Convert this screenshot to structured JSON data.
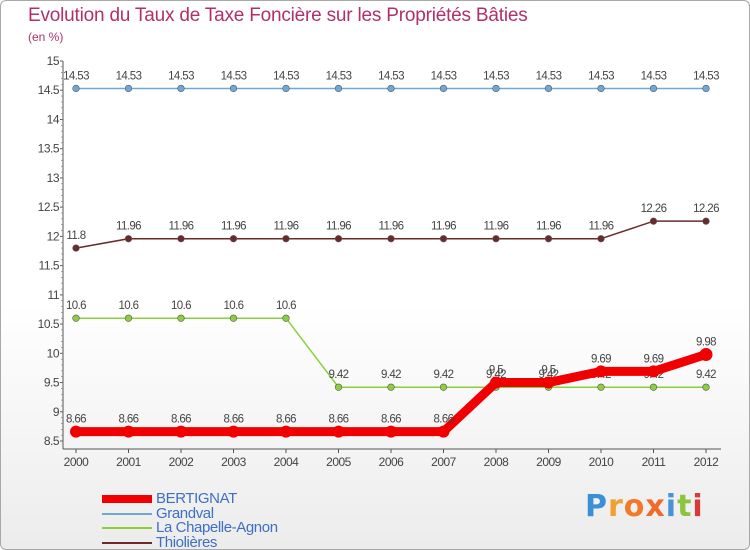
{
  "header": {
    "title": "Evolution du Taux de Taxe Foncière sur les Propriétés Bâties",
    "unit": "(en %)"
  },
  "logo": {
    "letters": [
      "P",
      "r",
      "o",
      "x",
      "i",
      "t",
      "i"
    ],
    "colors": [
      "#3a8fd6",
      "#f0a02c",
      "#f07a2a",
      "#f06a2a",
      "#4a92d8",
      "#8cc43e",
      "#d63a3a"
    ]
  },
  "chart_data": {
    "type": "line",
    "title": "Evolution du Taux de Taxe Foncière sur les Propriétés Bâties",
    "ylabel": "(en %)",
    "xlabel": "",
    "x": [
      "2000",
      "2001",
      "2002",
      "2003",
      "2004",
      "2005",
      "2006",
      "2007",
      "2008",
      "2009",
      "2010",
      "2011",
      "2012"
    ],
    "ylim": [
      8.5,
      15
    ],
    "yticks": [
      "8.5",
      "9",
      "9.5",
      "10",
      "10.5",
      "11",
      "11.5",
      "12",
      "12.5",
      "13",
      "13.5",
      "14",
      "14.5",
      "15"
    ],
    "grid": false,
    "legend_position": "bottom-left",
    "series": [
      {
        "name": "Grandval",
        "color": "#6fa8d6",
        "values": [
          14.53,
          14.53,
          14.53,
          14.53,
          14.53,
          14.53,
          14.53,
          14.53,
          14.53,
          14.53,
          14.53,
          14.53,
          14.53
        ],
        "labels": [
          "14.53",
          "14.53",
          "14.53",
          "14.53",
          "14.53",
          "14.53",
          "14.53",
          "14.53",
          "14.53",
          "14.53",
          "14.53",
          "14.53",
          "14.53"
        ]
      },
      {
        "name": "Thiolières",
        "color": "#6b2a2a",
        "values": [
          11.8,
          11.96,
          11.96,
          11.96,
          11.96,
          11.96,
          11.96,
          11.96,
          11.96,
          11.96,
          11.96,
          12.26,
          12.26
        ],
        "labels": [
          "11.8",
          "11.96",
          "11.96",
          "11.96",
          "11.96",
          "11.96",
          "11.96",
          "11.96",
          "11.96",
          "11.96",
          "11.96",
          "12.26",
          "12.26"
        ]
      },
      {
        "name": "La Chapelle-Agnon",
        "color": "#8ccf3c",
        "values": [
          10.6,
          10.6,
          10.6,
          10.6,
          10.6,
          9.42,
          9.42,
          9.42,
          9.42,
          9.42,
          9.42,
          9.42,
          9.42
        ],
        "labels": [
          "10.6",
          "10.6",
          "10.6",
          "10.6",
          "10.6",
          "9.42",
          "9.42",
          "9.42",
          "9.42",
          "9.42",
          "9.42",
          "9.42",
          "9.42"
        ]
      },
      {
        "name": "BERTIGNAT",
        "color": "#f00000",
        "values": [
          8.66,
          8.66,
          8.66,
          8.66,
          8.66,
          8.66,
          8.66,
          8.66,
          9.5,
          9.5,
          9.69,
          9.69,
          9.98
        ],
        "labels": [
          "8.66",
          "8.66",
          "8.66",
          "8.66",
          "8.66",
          "8.66",
          "8.66",
          "8.66",
          "9.5",
          "9.5",
          "9.69",
          "9.69",
          "9.98"
        ]
      }
    ],
    "legend": [
      {
        "name": "BERTIGNAT",
        "color": "#f00000",
        "style": "thick"
      },
      {
        "name": "Grandval",
        "color": "#6fa8d6",
        "style": "thin"
      },
      {
        "name": "La Chapelle-Agnon",
        "color": "#8ccf3c",
        "style": "thin"
      },
      {
        "name": "Thiolières",
        "color": "#6b2a2a",
        "style": "thin"
      }
    ]
  }
}
